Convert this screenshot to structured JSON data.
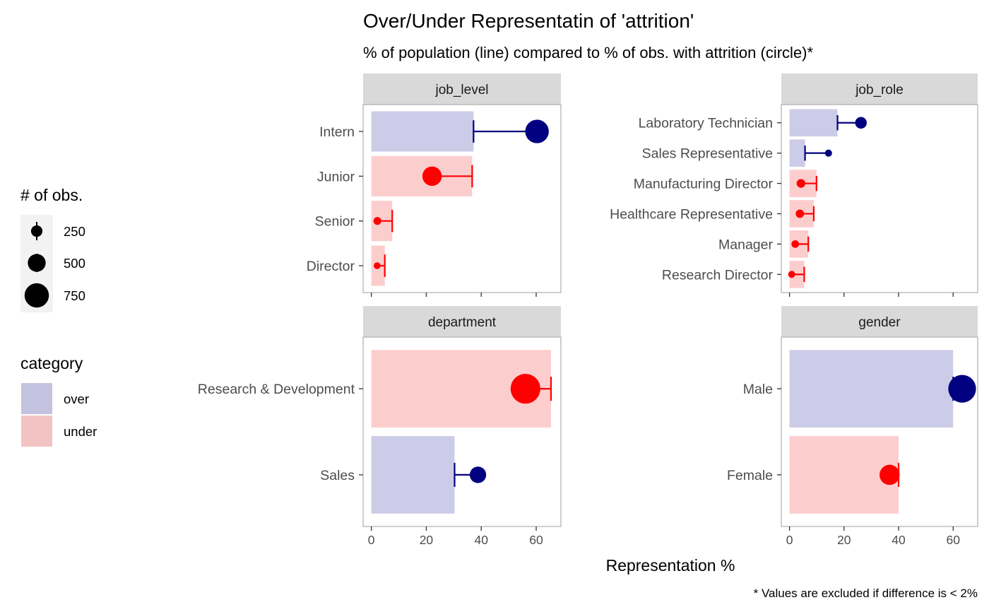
{
  "chart_data": {
    "type": "bar",
    "title": "Over/Under Representatin of 'attrition'",
    "subtitle": "% of population (line) compared to % of obs. with attrition (circle)*",
    "xlabel": "Representation %",
    "caption": "* Values are excluded if difference is < 2%",
    "xlim": [
      -3,
      69
    ],
    "x_ticks": [
      0,
      20,
      40,
      60
    ],
    "grid": false,
    "colors": {
      "over_fill": "#cccce8",
      "under_fill": "#fccdcd",
      "over_point": "#000080",
      "under_point": "#ff0000",
      "strip_bg": "#d9d9d9",
      "panel_border": "#b3b3b3"
    },
    "legends": {
      "size": {
        "title": "# of obs.",
        "position": "left",
        "entries": [
          {
            "label": "250",
            "value": 250
          },
          {
            "label": "500",
            "value": 500
          },
          {
            "label": "750",
            "value": 750
          }
        ]
      },
      "fill": {
        "title": "category",
        "position": "left",
        "entries": [
          {
            "label": "over",
            "color": "#c3c3df"
          },
          {
            "label": "under",
            "color": "#f3c3c3"
          }
        ]
      }
    },
    "panels": [
      {
        "strip": "job_level",
        "rows": [
          {
            "label": "Intern",
            "population_pct": 37.2,
            "attrition_pct": 60.3,
            "n_obs": 720,
            "category": "over"
          },
          {
            "label": "Junior",
            "population_pct": 36.7,
            "attrition_pct": 22.1,
            "n_obs": 560,
            "category": "under"
          },
          {
            "label": "Senior",
            "population_pct": 7.6,
            "attrition_pct": 2.2,
            "n_obs": 110,
            "category": "under"
          },
          {
            "label": "Director",
            "population_pct": 4.9,
            "attrition_pct": 2.1,
            "n_obs": 70,
            "category": "under"
          }
        ]
      },
      {
        "strip": "job_role",
        "rows": [
          {
            "label": "Laboratory Technician",
            "population_pct": 17.6,
            "attrition_pct": 26.2,
            "n_obs": 260,
            "category": "over"
          },
          {
            "label": "Sales Representative",
            "population_pct": 5.7,
            "attrition_pct": 14.3,
            "n_obs": 83,
            "category": "over"
          },
          {
            "label": "Manufacturing Director",
            "population_pct": 9.9,
            "attrition_pct": 4.2,
            "n_obs": 145,
            "category": "under"
          },
          {
            "label": "Healthcare Representative",
            "population_pct": 8.9,
            "attrition_pct": 3.8,
            "n_obs": 131,
            "category": "under"
          },
          {
            "label": "Manager",
            "population_pct": 6.9,
            "attrition_pct": 2.1,
            "n_obs": 102,
            "category": "under"
          },
          {
            "label": "Research Director",
            "population_pct": 5.4,
            "attrition_pct": 0.8,
            "n_obs": 80,
            "category": "under"
          }
        ]
      },
      {
        "strip": "department",
        "rows": [
          {
            "label": "Research & Development",
            "population_pct": 65.4,
            "attrition_pct": 56.1,
            "n_obs": 961,
            "category": "under"
          },
          {
            "label": "Sales",
            "population_pct": 30.3,
            "attrition_pct": 38.8,
            "n_obs": 446,
            "category": "over"
          }
        ]
      },
      {
        "strip": "gender",
        "rows": [
          {
            "label": "Male",
            "population_pct": 60.0,
            "attrition_pct": 63.3,
            "n_obs": 882,
            "category": "over"
          },
          {
            "label": "Female",
            "population_pct": 40.0,
            "attrition_pct": 36.7,
            "n_obs": 588,
            "category": "under"
          }
        ]
      }
    ]
  }
}
